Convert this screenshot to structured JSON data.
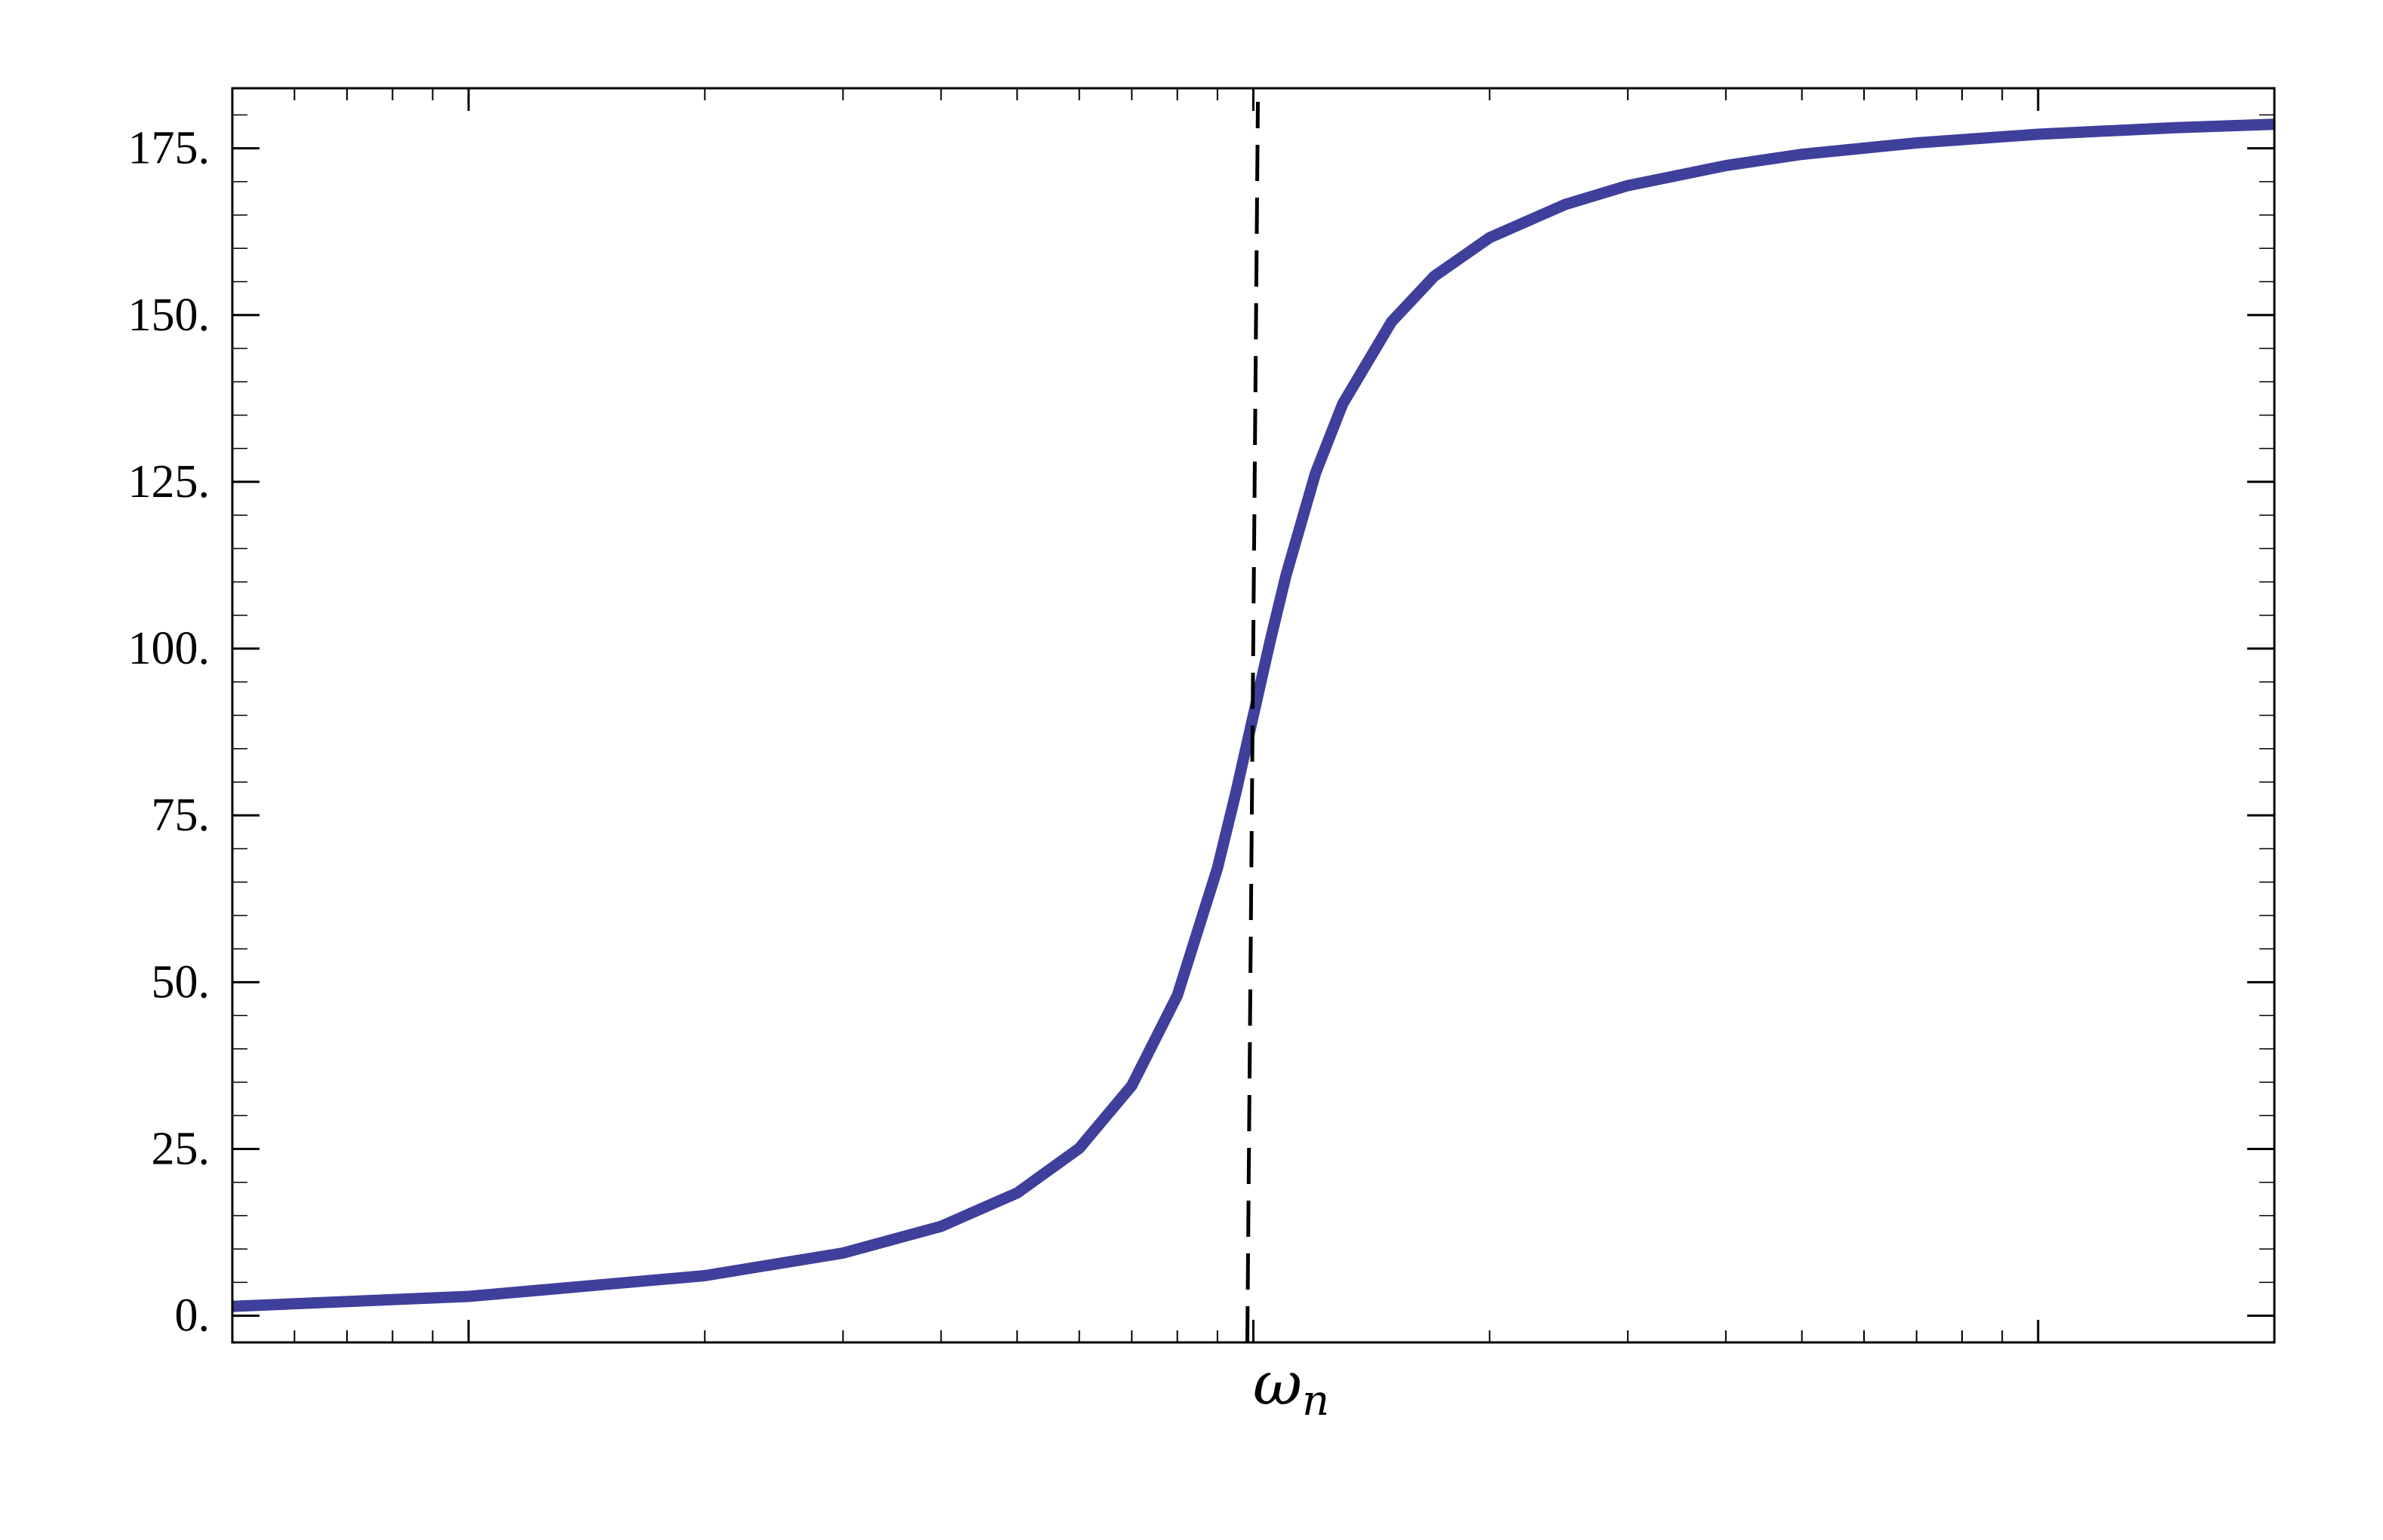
{
  "chart_data": {
    "type": "line",
    "title": "",
    "xlabel": "",
    "ylabel": "",
    "x_scale": "log",
    "xlim": [
      0.05,
      20
    ],
    "ylim": [
      -4,
      184
    ],
    "grid": false,
    "legend": "none",
    "y_ticks": [
      0,
      25,
      50,
      75,
      100,
      125,
      150,
      175
    ],
    "y_tick_labels": [
      "0.",
      "25.",
      "50.",
      "75.",
      "100.",
      "125.",
      "150.",
      "175."
    ],
    "x_major_ticks": [
      0.1,
      1,
      10
    ],
    "annotation": {
      "x": 1,
      "label": "ω",
      "subscript": "n",
      "style": "dashed vertical line"
    },
    "series": [
      {
        "color": "#3f3f9c",
        "x": [
          0.05,
          0.1,
          0.2,
          0.3,
          0.4,
          0.5,
          0.6,
          0.7,
          0.8,
          0.9,
          0.95,
          1,
          1.05,
          1.1,
          1.2,
          1.3,
          1.5,
          1.7,
          2,
          2.5,
          3,
          4,
          5,
          7,
          10,
          15,
          20
        ],
        "y": [
          1.4,
          2.9,
          6.0,
          9.4,
          13.4,
          18.4,
          25.1,
          34.5,
          48.0,
          67.1,
          78.4,
          90,
          101.0,
          110.9,
          126.3,
          136.7,
          149.0,
          155.8,
          161.6,
          166.6,
          169.4,
          172.4,
          174.1,
          175.8,
          177.1,
          178.1,
          178.6
        ]
      }
    ]
  }
}
